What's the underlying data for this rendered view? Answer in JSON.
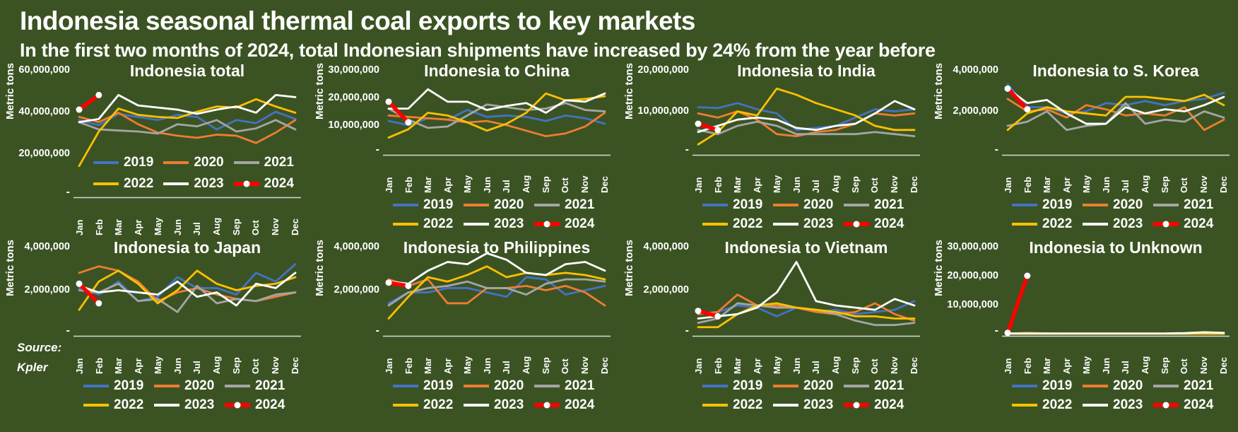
{
  "header": {
    "title": "Indonesia seasonal thermal coal exports to key markets",
    "subtitle": "In the first two months of 2024, total Indonesian shipments have increased by 24% from the year before"
  },
  "source": {
    "label": "Source:",
    "name": "Kpler"
  },
  "months": [
    "Jan",
    "Feb",
    "Mar",
    "Apr",
    "May",
    "Jun",
    "Jul",
    "Aug",
    "Sep",
    "Oct",
    "Nov",
    "Dec"
  ],
  "colors": {
    "background": "#3B5323",
    "text": "#FFFFFF",
    "axis": "#D9D9D9",
    "marker": "#FFFFFF",
    "series": {
      "2019": "#4472C4",
      "2020": "#ED7D31",
      "2021": "#A5A5A5",
      "2022": "#FFC000",
      "2023": "#FFFFFF",
      "2024": "#FF0000"
    }
  },
  "chart_data": [
    {
      "type": "line",
      "title": "Indonesia total",
      "ylabel": "Metric tons",
      "value_unit": "million metric tons",
      "ylim": [
        0,
        60
      ],
      "yticks": [
        {
          "label": "60,000,000",
          "value": 60
        },
        {
          "label": "40,000,000",
          "value": 40
        },
        {
          "label": "20,000,000",
          "value": 20
        }
      ],
      "zero_label": "-",
      "legend_inside": true,
      "categories": [
        "Jan",
        "Feb",
        "Mar",
        "Apr",
        "May",
        "Jun",
        "Jul",
        "Aug",
        "Sep",
        "Oct",
        "Nov",
        "Dec"
      ],
      "series": [
        {
          "name": "2019",
          "values": [
            36,
            33.5,
            39,
            37.5,
            36,
            38.5,
            37.5,
            31.5,
            36,
            34.5,
            40,
            36.5
          ]
        },
        {
          "name": "2020",
          "values": [
            37.5,
            35,
            39.5,
            34,
            30,
            28.5,
            27.5,
            29,
            28.5,
            25,
            30,
            36
          ]
        },
        {
          "name": "2021",
          "values": [
            35,
            31.5,
            31,
            30.5,
            29.5,
            34,
            33,
            36,
            30.5,
            32,
            36,
            31.5
          ]
        },
        {
          "name": "2022",
          "values": [
            14,
            30.5,
            41.5,
            38.5,
            37.5,
            37,
            40,
            42.5,
            42,
            46,
            42.5,
            39.5
          ]
        },
        {
          "name": "2023",
          "values": [
            35,
            36.5,
            48,
            43,
            42,
            41,
            39,
            41,
            42.5,
            39.5,
            48,
            47
          ]
        },
        {
          "name": "2024",
          "values": [
            41,
            48
          ]
        }
      ]
    },
    {
      "type": "line",
      "title": "Indonesia to China",
      "ylabel": "Metric tons",
      "value_unit": "million metric tons",
      "ylim": [
        0,
        30
      ],
      "yticks": [
        {
          "label": "30,000,000",
          "value": 30
        },
        {
          "label": "20,000,000",
          "value": 20
        },
        {
          "label": "10,000,000",
          "value": 10
        }
      ],
      "zero_label": "-",
      "legend_inside": false,
      "categories": [
        "Jan",
        "Feb",
        "Mar",
        "Apr",
        "May",
        "Jun",
        "Jul",
        "Aug",
        "Sep",
        "Oct",
        "Nov",
        "Dec"
      ],
      "series": [
        {
          "name": "2019",
          "values": [
            11.5,
            10,
            12.5,
            12,
            15.5,
            13,
            13.5,
            13,
            11.5,
            13.5,
            12.5,
            10.5
          ]
        },
        {
          "name": "2020",
          "values": [
            13.5,
            13,
            12.5,
            12,
            11,
            11.5,
            10,
            8,
            6,
            7,
            9.5,
            14.5
          ]
        },
        {
          "name": "2021",
          "values": [
            16,
            12,
            9,
            9.5,
            13.5,
            17.5,
            16.5,
            15.5,
            16,
            18,
            15.5,
            15
          ]
        },
        {
          "name": "2022",
          "values": [
            5.5,
            8.5,
            14.5,
            13.5,
            11,
            8,
            10.5,
            14.5,
            21.5,
            19,
            19.5,
            20.5
          ]
        },
        {
          "name": "2023",
          "values": [
            16,
            16,
            23,
            18.5,
            18.5,
            15.5,
            17,
            18,
            14.5,
            19,
            18.5,
            21.5
          ]
        },
        {
          "name": "2024",
          "values": [
            18.5,
            11
          ]
        }
      ]
    },
    {
      "type": "line",
      "title": "Indonesia to India",
      "ylabel": "Metric tons",
      "value_unit": "million metric tons",
      "ylim": [
        0,
        20
      ],
      "yticks": [
        {
          "label": "20,000,000",
          "value": 20
        },
        {
          "label": "10,000,000",
          "value": 10
        }
      ],
      "zero_label": "-",
      "legend_inside": false,
      "categories": [
        "Jan",
        "Feb",
        "Mar",
        "Apr",
        "May",
        "Jun",
        "Jul",
        "Aug",
        "Sep",
        "Oct",
        "Nov",
        "Dec"
      ],
      "series": [
        {
          "name": "2019",
          "values": [
            11,
            10.8,
            12,
            10.5,
            9.5,
            5.5,
            6,
            6.5,
            8.5,
            10.5,
            10,
            10.5
          ]
        },
        {
          "name": "2020",
          "values": [
            9.5,
            8.5,
            10,
            8,
            4.5,
            4,
            5,
            5.5,
            7,
            9.5,
            9,
            9.5
          ]
        },
        {
          "name": "2021",
          "values": [
            5.5,
            4.5,
            6.5,
            7.5,
            6.5,
            4.5,
            4.5,
            4.5,
            4.5,
            5,
            4.5,
            4
          ]
        },
        {
          "name": "2022",
          "values": [
            2,
            5,
            10,
            9,
            15.5,
            14,
            12,
            10.5,
            9,
            6.5,
            5.5,
            5.5
          ]
        },
        {
          "name": "2023",
          "values": [
            5,
            6.5,
            8,
            8.5,
            8,
            6,
            5.5,
            6.5,
            7,
            9.5,
            12.5,
            10.5
          ]
        },
        {
          "name": "2024",
          "values": [
            7,
            5.5
          ]
        }
      ]
    },
    {
      "type": "line",
      "title": "Indonesia to S. Korea",
      "ylabel": "Metric tons",
      "value_unit": "million metric tons",
      "ylim": [
        0,
        4
      ],
      "yticks": [
        {
          "label": "4,000,000",
          "value": 4
        },
        {
          "label": "2,000,000",
          "value": 2
        }
      ],
      "zero_label": "-",
      "legend_inside": false,
      "categories": [
        "Jan",
        "Feb",
        "Mar",
        "Apr",
        "May",
        "Jun",
        "Jul",
        "Aug",
        "Sep",
        "Oct",
        "Nov",
        "Dec"
      ],
      "series": [
        {
          "name": "2019",
          "values": [
            3.3,
            2.2,
            2.2,
            1.9,
            2.0,
            2.4,
            2.3,
            2.5,
            2.3,
            2.5,
            2.6,
            2.9
          ]
        },
        {
          "name": "2020",
          "values": [
            2.6,
            2.0,
            2.1,
            1.7,
            2.3,
            2.1,
            1.8,
            1.9,
            1.8,
            2.2,
            1.1,
            1.6
          ]
        },
        {
          "name": "2021",
          "values": [
            1.3,
            1.5,
            2.0,
            1.1,
            1.3,
            1.4,
            2.4,
            1.4,
            1.6,
            1.5,
            2.0,
            1.7
          ]
        },
        {
          "name": "2022",
          "values": [
            1.1,
            1.9,
            2.2,
            2.0,
            1.9,
            1.8,
            2.7,
            2.7,
            2.6,
            2.5,
            2.8,
            2.3
          ]
        },
        {
          "name": "2023",
          "values": [
            3.1,
            2.4,
            2.55,
            1.9,
            1.4,
            1.4,
            2.2,
            1.9,
            2.1,
            2.0,
            2.3,
            2.7
          ]
        },
        {
          "name": "2024",
          "values": [
            3.1,
            2.1
          ]
        }
      ]
    },
    {
      "type": "line",
      "title": "Indonesia to Japan",
      "ylabel": "Metric tons",
      "value_unit": "million metric tons",
      "ylim": [
        0,
        4
      ],
      "yticks": [
        {
          "label": "4,000,000",
          "value": 4
        },
        {
          "label": "2,000,000",
          "value": 2
        }
      ],
      "zero_label": "-",
      "legend_inside": false,
      "categories": [
        "Jan",
        "Feb",
        "Mar",
        "Apr",
        "May",
        "Jun",
        "Jul",
        "Aug",
        "Sep",
        "Oct",
        "Nov",
        "Dec"
      ],
      "series": [
        {
          "name": "2019",
          "values": [
            2.1,
            1.8,
            2.4,
            1.5,
            1.7,
            2.6,
            2.1,
            2.1,
            1.8,
            2.8,
            2.4,
            3.2
          ]
        },
        {
          "name": "2020",
          "values": [
            2.8,
            3.1,
            2.9,
            2.4,
            1.5,
            1.9,
            2.1,
            1.8,
            1.6,
            1.5,
            1.7,
            1.9
          ]
        },
        {
          "name": "2021",
          "values": [
            2.0,
            1.9,
            2.3,
            1.5,
            1.6,
            1.0,
            2.2,
            1.4,
            1.6,
            1.5,
            1.8,
            1.9
          ]
        },
        {
          "name": "2022",
          "values": [
            1.1,
            2.4,
            2.9,
            2.3,
            1.4,
            2.0,
            2.9,
            2.3,
            2.0,
            2.2,
            2.3,
            2.6
          ]
        },
        {
          "name": "2023",
          "values": [
            2.2,
            1.9,
            2.0,
            1.9,
            1.8,
            2.4,
            1.7,
            1.9,
            1.3,
            2.3,
            2.1,
            2.8
          ]
        },
        {
          "name": "2024",
          "values": [
            2.3,
            1.4
          ]
        }
      ]
    },
    {
      "type": "line",
      "title": "Indonesia to Philippines",
      "ylabel": "Metric tons",
      "value_unit": "million metric tons",
      "ylim": [
        0,
        4
      ],
      "yticks": [
        {
          "label": "4,000,000",
          "value": 4
        },
        {
          "label": "2,000,000",
          "value": 2
        }
      ],
      "zero_label": "-",
      "legend_inside": false,
      "categories": [
        "Jan",
        "Feb",
        "Mar",
        "Apr",
        "May",
        "Jun",
        "Jul",
        "Aug",
        "Sep",
        "Oct",
        "Nov",
        "Dec"
      ],
      "series": [
        {
          "name": "2019",
          "values": [
            1.4,
            1.9,
            1.9,
            2.1,
            2.1,
            1.9,
            1.7,
            2.6,
            2.5,
            1.8,
            2.0,
            2.2
          ]
        },
        {
          "name": "2020",
          "values": [
            2.5,
            2.2,
            2.5,
            1.4,
            1.4,
            2.1,
            2.1,
            2.2,
            2.0,
            2.2,
            1.9,
            1.3
          ]
        },
        {
          "name": "2021",
          "values": [
            1.3,
            1.9,
            2.1,
            2.2,
            2.4,
            2.1,
            2.1,
            1.8,
            2.3,
            2.5,
            2.5,
            2.4
          ]
        },
        {
          "name": "2022",
          "values": [
            0.7,
            1.7,
            2.6,
            2.4,
            2.7,
            3.1,
            2.6,
            2.8,
            2.7,
            2.8,
            2.7,
            2.5
          ]
        },
        {
          "name": "2023",
          "values": [
            2.4,
            2.3,
            2.9,
            3.3,
            3.2,
            3.7,
            3.4,
            2.8,
            2.7,
            3.2,
            3.3,
            2.9
          ]
        },
        {
          "name": "2024",
          "values": [
            2.35,
            2.2
          ]
        }
      ]
    },
    {
      "type": "line",
      "title": "Indonesia to Vietnam",
      "ylabel": "Metric tons",
      "value_unit": "million metric tons",
      "ylim": [
        0,
        4
      ],
      "yticks": [
        {
          "label": "4,000,000",
          "value": 4
        },
        {
          "label": "2,000,000",
          "value": 2
        }
      ],
      "zero_label": "-",
      "legend_inside": false,
      "categories": [
        "Jan",
        "Feb",
        "Mar",
        "Apr",
        "May",
        "Jun",
        "Jul",
        "Aug",
        "Sep",
        "Oct",
        "Nov",
        "Dec"
      ],
      "series": [
        {
          "name": "2019",
          "values": [
            0.9,
            1.0,
            1.3,
            1.2,
            0.8,
            1.2,
            1.0,
            1.1,
            0.9,
            1.0,
            1.1,
            1.5
          ]
        },
        {
          "name": "2020",
          "values": [
            0.9,
            1.0,
            1.8,
            1.3,
            1.3,
            1.2,
            1.0,
            0.9,
            1.0,
            1.4,
            0.9,
            0.6
          ]
        },
        {
          "name": "2021",
          "values": [
            0.5,
            0.7,
            1.4,
            1.3,
            1.2,
            1.2,
            1.1,
            0.9,
            0.6,
            0.4,
            0.4,
            0.5
          ]
        },
        {
          "name": "2022",
          "values": [
            0.3,
            0.3,
            0.9,
            1.3,
            1.4,
            1.2,
            1.1,
            1.0,
            0.8,
            0.8,
            0.7,
            0.7
          ]
        },
        {
          "name": "2023",
          "values": [
            0.7,
            0.8,
            0.9,
            1.2,
            1.9,
            3.3,
            1.5,
            1.3,
            1.2,
            1.1,
            1.6,
            1.3
          ]
        },
        {
          "name": "2024",
          "values": [
            1.05,
            0.8
          ]
        }
      ]
    },
    {
      "type": "line",
      "title": "Indonesia to Unknown",
      "ylabel": "Metric tons",
      "value_unit": "million metric tons",
      "ylim": [
        0,
        30
      ],
      "yticks": [
        {
          "label": "30,000,000",
          "value": 30
        },
        {
          "label": "20,000,000",
          "value": 20
        },
        {
          "label": "10,000,000",
          "value": 10
        }
      ],
      "zero_label": "-",
      "legend_inside": false,
      "categories": [
        "Jan",
        "Feb",
        "Mar",
        "Apr",
        "May",
        "Jun",
        "Jul",
        "Aug",
        "Sep",
        "Oct",
        "Nov",
        "Dec"
      ],
      "series": [
        {
          "name": "2019",
          "values": [
            0,
            0,
            0,
            0,
            0,
            0,
            0,
            0,
            0,
            0,
            0,
            0
          ]
        },
        {
          "name": "2020",
          "values": [
            0,
            0.3,
            0.1,
            0,
            0,
            0,
            0,
            0,
            0,
            0,
            0,
            0
          ]
        },
        {
          "name": "2021",
          "values": [
            0,
            0,
            0,
            0,
            0,
            0,
            0,
            0,
            0,
            0,
            0,
            0
          ]
        },
        {
          "name": "2022",
          "values": [
            0,
            0,
            0,
            0,
            0,
            0,
            0,
            0,
            0,
            0,
            0,
            0
          ]
        },
        {
          "name": "2023",
          "values": [
            0.1,
            0.1,
            0.1,
            0.1,
            0.1,
            0.1,
            0.1,
            0.1,
            0.1,
            0.2,
            0.5,
            0.3
          ]
        },
        {
          "name": "2024",
          "values": [
            0.3,
            20
          ]
        }
      ]
    }
  ]
}
